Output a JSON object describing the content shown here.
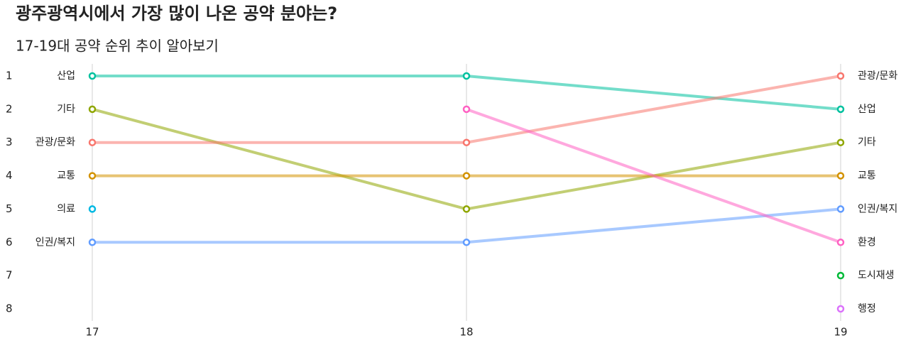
{
  "chart_data": {
    "type": "bump",
    "title": "광주광역시에서 가장 많이 나온 공약 분야는?",
    "subtitle": "17-19대 공약 순위 추이 알아보기",
    "x": [
      17,
      18,
      19
    ],
    "xlim": [
      17,
      19
    ],
    "xticks": [
      17,
      18,
      19
    ],
    "ylim": [
      1,
      8
    ],
    "yticks": [
      1,
      2,
      3,
      4,
      5,
      6,
      7,
      8
    ],
    "y_reversed": true,
    "grid": true,
    "series": [
      {
        "name": "산업",
        "color": "#00c19f",
        "values": [
          1,
          1,
          2
        ]
      },
      {
        "name": "기타",
        "color": "#8fa600",
        "values": [
          2,
          5,
          3
        ]
      },
      {
        "name": "관광/문화",
        "color": "#f8766d",
        "values": [
          3,
          3,
          1
        ]
      },
      {
        "name": "교통",
        "color": "#d39200",
        "values": [
          4,
          4,
          4
        ]
      },
      {
        "name": "의료",
        "color": "#00b9e3",
        "values": [
          5,
          null,
          null
        ]
      },
      {
        "name": "인권/복지",
        "color": "#619cff",
        "values": [
          6,
          6,
          5
        ]
      },
      {
        "name": "환경",
        "color": "#ff61c3",
        "values": [
          null,
          2,
          6
        ]
      },
      {
        "name": "도시재생",
        "color": "#00ba38",
        "values": [
          null,
          null,
          7
        ]
      },
      {
        "name": "행정",
        "color": "#db72fb",
        "values": [
          null,
          null,
          8
        ]
      }
    ]
  }
}
